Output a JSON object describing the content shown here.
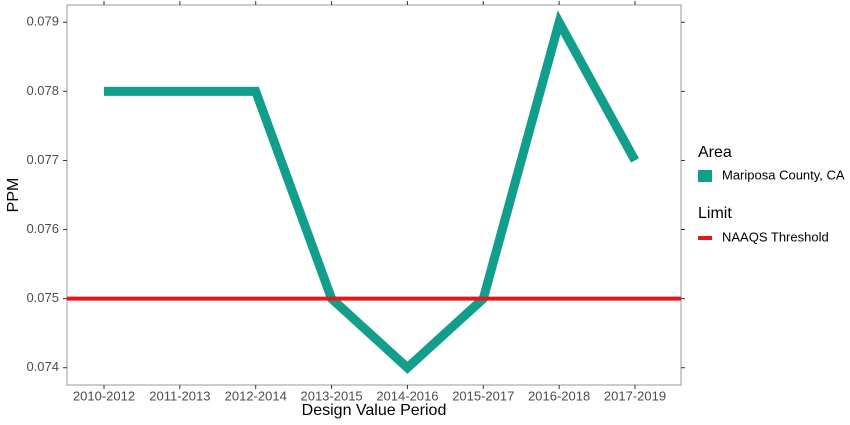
{
  "chart_data": {
    "type": "line",
    "x_label": "Design Value Period",
    "y_label": "PPM",
    "categories": [
      "2010-2012",
      "2011-2013",
      "2012-2014",
      "2013-2015",
      "2014-2016",
      "2015-2017",
      "2016-2018",
      "2017-2019"
    ],
    "series": [
      {
        "name": "Mariposa County, CA",
        "color": "#119e8a",
        "legend_title": "Area",
        "values": [
          0.078,
          0.078,
          0.078,
          0.075,
          0.074,
          0.075,
          0.079,
          0.077
        ]
      }
    ],
    "threshold": {
      "name": "NAAQS Threshold",
      "legend_title": "Limit",
      "value": 0.075,
      "color": "#e8161b"
    },
    "ylim": [
      0.07375,
      0.07925
    ],
    "yticks": [
      0.074,
      0.075,
      0.076,
      0.077,
      0.078,
      0.079
    ],
    "grid": false
  }
}
